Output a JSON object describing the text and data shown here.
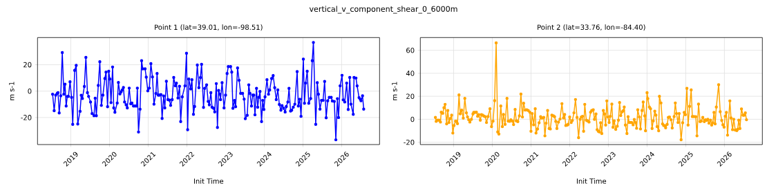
{
  "chart_data": [
    {
      "type": "line",
      "title": "Point 1 (lat=39.01, lon=-98.51)",
      "xlabel": "Init Time",
      "ylabel": "m s-1",
      "annotations": [
        "vertical_v_component_shear_0_6000m"
      ],
      "color": "#0000ff",
      "marker": "circle",
      "grid": true,
      "xlim": [
        2018.14,
        2026.98
      ],
      "ylim": [
        -40.5,
        40.6
      ],
      "xticks": [
        2019,
        2020,
        2021,
        2022,
        2023,
        2024,
        2025,
        2026
      ],
      "yticks": [
        -20,
        0,
        20
      ],
      "x": [
        2018.53,
        2018.57,
        2018.61,
        2018.65,
        2018.67,
        2018.7,
        2018.74,
        2018.78,
        2018.82,
        2018.85,
        2018.88,
        2018.91,
        2018.94,
        2018.98,
        2019.02,
        2019.05,
        2019.1,
        2019.14,
        2019.18,
        2019.24,
        2019.27,
        2019.3,
        2019.35,
        2019.39,
        2019.43,
        2019.46,
        2019.51,
        2019.55,
        2019.6,
        2019.63,
        2019.66,
        2019.71,
        2019.75,
        2019.79,
        2019.83,
        2019.88,
        2019.91,
        2019.95,
        2019.98,
        2020.01,
        2020.04,
        2020.08,
        2020.11,
        2020.14,
        2020.2,
        2020.23,
        2020.27,
        2020.3,
        2020.33,
        2020.36,
        2020.39,
        2020.43,
        2020.46,
        2020.51,
        2020.55,
        2020.58,
        2020.62,
        2020.66,
        2020.7,
        2020.72,
        2020.75,
        2020.79,
        2020.83,
        2020.86,
        2020.92,
        2020.95,
        2020.99,
        2021.03,
        2021.07,
        2021.11,
        2021.15,
        2021.2,
        2021.23,
        2021.26,
        2021.29,
        2021.33,
        2021.36,
        2021.4,
        2021.43,
        2021.47,
        2021.51,
        2021.55,
        2021.58,
        2021.62,
        2021.66,
        2021.7,
        2021.73,
        2021.77,
        2021.81,
        2021.84,
        2021.88,
        2021.95,
        2021.99,
        2022.02,
        2022.05,
        2022.1,
        2022.13,
        2022.17,
        2022.2,
        2022.27,
        2022.31,
        2022.35,
        2022.38,
        2022.43,
        2022.46,
        2022.51,
        2022.55,
        2022.58,
        2022.62,
        2022.65,
        2022.69,
        2022.72,
        2022.76,
        2022.79,
        2022.82,
        2022.85,
        2022.87,
        2022.91,
        2022.96,
        2023.0,
        2023.04,
        2023.07,
        2023.13,
        2023.16,
        2023.19,
        2023.23,
        2023.26,
        2023.31,
        2023.35,
        2023.39,
        2023.44,
        2023.48,
        2023.51,
        2023.56,
        2023.6,
        2023.63,
        2023.67,
        2023.7,
        2023.73,
        2023.76,
        2023.8,
        2023.83,
        2023.86,
        2023.89,
        2023.93,
        2023.96,
        2023.99,
        2024.02,
        2024.07,
        2024.11,
        2024.14,
        2024.19,
        2024.23,
        2024.27,
        2024.31,
        2024.35,
        2024.39,
        2024.43,
        2024.46,
        2024.5,
        2024.54,
        2024.57,
        2024.61,
        2024.64,
        2024.68,
        2024.71,
        2024.75,
        2024.79,
        2024.85,
        2024.88,
        2024.92,
        2024.95,
        2025.01,
        2025.04,
        2025.07,
        2025.11,
        2025.15,
        2025.2,
        2025.24,
        2025.27,
        2025.33,
        2025.37,
        2025.4,
        2025.44,
        2025.48,
        2025.52,
        2025.56,
        2025.6,
        2025.64,
        2025.68,
        2025.73,
        2025.76,
        2025.81,
        2025.85,
        2025.89,
        2025.92,
        2025.96,
        2026.01,
        2026.04,
        2026.08,
        2026.13,
        2026.17,
        2026.21,
        2026.24,
        2026.3,
        2026.32,
        2026.37,
        2026.4,
        2026.45,
        2026.48,
        2026.5,
        2026.54,
        2026.57
      ],
      "values": [
        -2.3,
        -14.8,
        -3.0,
        -1.7,
        -1.2,
        -16.5,
        -3.5,
        29.2,
        -2.3,
        5.2,
        -11.3,
        -4.0,
        -4.0,
        7.1,
        -4.7,
        -25.2,
        15.7,
        19.5,
        -24.9,
        -15.3,
        -3.1,
        -5.6,
        3.5,
        25.6,
        -1.2,
        -4.0,
        -8.2,
        -17.0,
        -18.6,
        -5.4,
        -18.6,
        4.3,
        22.3,
        -10.8,
        -3.0,
        9.6,
        14.4,
        -11.8,
        15.1,
        9.2,
        -8.7,
        18.3,
        -12.7,
        -16.0,
        -9.0,
        6.6,
        -2.1,
        -0.5,
        0.9,
        2.8,
        -8.2,
        -10.4,
        -12.7,
        2.3,
        -9.6,
        -9.0,
        -11.3,
        -11.3,
        -11.3,
        2.3,
        -31.0,
        -13.7,
        23.1,
        16.9,
        16.9,
        10.6,
        0.2,
        2.3,
        20.9,
        10.8,
        -9.9,
        -1.7,
        13.4,
        -3.0,
        -3.0,
        -2.6,
        -20.7,
        -3.7,
        -12.7,
        7.5,
        -6.4,
        -6.8,
        -10.8,
        -6.4,
        10.4,
        4.0,
        6.1,
        -5.2,
        3.7,
        -23.1,
        -4.3,
        4.0,
        28.7,
        -29.2,
        9.2,
        1.7,
        8.7,
        -17.6,
        -11.7,
        19.8,
        2.6,
        10.3,
        20.3,
        -12.3,
        2.1,
        4.7,
        -7.8,
        -10.4,
        -1.2,
        -12.2,
        -13.0,
        -15.7,
        5.7,
        -27.5,
        0.5,
        -2.3,
        -6.4,
        6.4,
        -12.7,
        -3.0,
        13.4,
        18.6,
        18.6,
        14.4,
        -13.0,
        -7.0,
        -11.8,
        17.6,
        8.2,
        -1.7,
        -1.7,
        -6.1,
        -20.9,
        -18.3,
        4.7,
        -1.7,
        -11.3,
        -3.0,
        -3.0,
        -17.9,
        2.1,
        -12.2,
        -4.7,
        -0.3,
        -23.1,
        -7.0,
        -13.9,
        -4.3,
        8.7,
        -2.3,
        0.9,
        9.6,
        11.8,
        2.6,
        -6.4,
        0.9,
        -10.1,
        -14.4,
        -11.0,
        -13.0,
        -15.8,
        -11.7,
        -8.2,
        2.1,
        -15.1,
        -14.4,
        -12.2,
        -9.9,
        14.8,
        -11.3,
        -6.1,
        -19.1,
        24.3,
        -9.2,
        6.1,
        15.1,
        -9.2,
        -5.6,
        23.1,
        36.9,
        -25.2,
        6.4,
        -2.3,
        -13.6,
        -7.0,
        -7.0,
        7.3,
        -20.2,
        -7.3,
        -4.7,
        -4.7,
        -7.5,
        -7.8,
        -36.9,
        -5.7,
        -20.0,
        4.0,
        12.0,
        -6.6,
        -8.2,
        6.1,
        -13.9,
        10.4,
        -9.9,
        -17.6,
        10.4,
        9.9,
        4.0,
        -4.9,
        -6.1,
        -7.3,
        -3.5,
        -13.6
      ]
    },
    {
      "type": "line",
      "title": "Point 2 (lat=33.76, lon=-84.40)",
      "xlabel": "Init Time",
      "ylabel": "m s-1",
      "color": "#ffa500",
      "marker": "circle",
      "grid": true,
      "xlim": [
        2018.14,
        2026.98
      ],
      "ylim": [
        -22,
        71.1
      ],
      "xticks": [
        2019,
        2020,
        2021,
        2022,
        2023,
        2024,
        2025,
        2026
      ],
      "yticks": [
        -20,
        0,
        20,
        40,
        60
      ],
      "x": [
        2018.53,
        2018.55,
        2018.58,
        2018.62,
        2018.66,
        2018.68,
        2018.72,
        2018.75,
        2018.78,
        2018.82,
        2018.85,
        2018.88,
        2018.91,
        2018.95,
        2018.98,
        2019.01,
        2019.05,
        2019.07,
        2019.1,
        2019.14,
        2019.17,
        2019.21,
        2019.25,
        2019.29,
        2019.33,
        2019.36,
        2019.39,
        2019.42,
        2019.46,
        2019.5,
        2019.52,
        2019.55,
        2019.59,
        2019.62,
        2019.65,
        2019.69,
        2019.72,
        2019.75,
        2019.78,
        2019.82,
        2019.85,
        2019.89,
        2019.94,
        2019.98,
        2020.02,
        2020.06,
        2020.1,
        2020.14,
        2020.17,
        2020.22,
        2020.26,
        2020.29,
        2020.33,
        2020.38,
        2020.41,
        2020.45,
        2020.48,
        2020.52,
        2020.55,
        2020.59,
        2020.62,
        2020.66,
        2020.7,
        2020.74,
        2020.78,
        2020.81,
        2020.85,
        2020.89,
        2020.93,
        2020.97,
        2021.0,
        2021.03,
        2021.07,
        2021.11,
        2021.13,
        2021.17,
        2021.21,
        2021.25,
        2021.28,
        2021.33,
        2021.36,
        2021.39,
        2021.43,
        2021.47,
        2021.5,
        2021.54,
        2021.58,
        2021.61,
        2021.64,
        2021.67,
        2021.71,
        2021.75,
        2021.8,
        2021.84,
        2021.87,
        2021.9,
        2021.94,
        2021.96,
        2022.0,
        2022.04,
        2022.07,
        2022.11,
        2022.15,
        2022.19,
        2022.23,
        2022.27,
        2022.3,
        2022.33,
        2022.36,
        2022.39,
        2022.43,
        2022.46,
        2022.5,
        2022.54,
        2022.57,
        2022.61,
        2022.64,
        2022.68,
        2022.71,
        2022.74,
        2022.77,
        2022.8,
        2022.83,
        2022.87,
        2022.9,
        2022.93,
        2022.96,
        2022.99,
        2023.02,
        2023.05,
        2023.09,
        2023.12,
        2023.15,
        2023.19,
        2023.23,
        2023.26,
        2023.29,
        2023.32,
        2023.36,
        2023.39,
        2023.41,
        2023.44,
        2023.48,
        2023.51,
        2023.54,
        2023.57,
        2023.6,
        2023.64,
        2023.67,
        2023.7,
        2023.73,
        2023.76,
        2023.8,
        2023.83,
        2023.87,
        2023.9,
        2023.94,
        2023.96,
        2024.0,
        2024.02,
        2024.06,
        2024.09,
        2024.13,
        2024.16,
        2024.2,
        2024.23,
        2024.26,
        2024.3,
        2024.32,
        2024.36,
        2024.4,
        2024.43,
        2024.46,
        2024.48,
        2024.52,
        2024.55,
        2024.58,
        2024.62,
        2024.65,
        2024.7,
        2024.73,
        2024.76,
        2024.8,
        2024.83,
        2024.88,
        2024.92,
        2024.96,
        2024.99,
        2025.03,
        2025.06,
        2025.1,
        2025.14,
        2025.17,
        2025.21,
        2025.26,
        2025.29,
        2025.33,
        2025.37,
        2025.4,
        2025.44,
        2025.48,
        2025.51,
        2025.54,
        2025.57,
        2025.6,
        2025.64,
        2025.67,
        2025.7,
        2025.73,
        2025.76,
        2025.79,
        2025.85,
        2025.89,
        2025.93,
        2025.96,
        2025.99,
        2026.02,
        2026.05,
        2026.08,
        2026.14,
        2026.17,
        2026.21,
        2026.24,
        2026.28,
        2026.32,
        2026.34,
        2026.37,
        2026.4,
        2026.44,
        2026.48,
        2026.51,
        2026.54,
        2026.57
      ],
      "values": [
        1.6,
        -1.8,
        -0.8,
        -0.8,
        -2.4,
        6.2,
        5.2,
        10.0,
        13.0,
        -4.0,
        7.6,
        -2.8,
        0.6,
        3.6,
        -12.0,
        -5.4,
        -1.6,
        -1.8,
        -3.8,
        21.2,
        4.8,
        8.0,
        1.0,
        18.2,
        5.6,
        2.0,
        -0.4,
        -2.4,
        0,
        4.6,
        6.0,
        6.0,
        6.2,
        2.6,
        4.0,
        -0.8,
        4.0,
        3.6,
        2.8,
        2.2,
        -2.8,
        2.4,
        9.2,
        -6.4,
        -1.6,
        16.2,
        66.5,
        -11.0,
        -12.8,
        11.6,
        -6.4,
        4.2,
        -4.4,
        18.2,
        -1.6,
        -1.8,
        -0.4,
        -1.6,
        -4.6,
        8.6,
        -1.4,
        -2.0,
        3.0,
        22.0,
        2.0,
        14.0,
        8.0,
        8.2,
        7.6,
        6.2,
        -10.4,
        5.0,
        -4.8,
        9.2,
        -12.0,
        -8.4,
        -3.0,
        2.2,
        1.0,
        1.6,
        -14.4,
        -3.4,
        7.6,
        -8.0,
        -8.4,
        3.6,
        3.0,
        2.2,
        -1.8,
        -8.0,
        -2.4,
        0.2,
        13.6,
        1.2,
        4.2,
        -5.4,
        -5.0,
        -4.4,
        2.0,
        -2.8,
        -1.0,
        5.6,
        17.2,
        1.6,
        -16.0,
        0,
        2.0,
        2.6,
        -10.4,
        13.0,
        -0.8,
        -1.4,
        -2.4,
        6.2,
        7.6,
        8.2,
        0,
        4.6,
        -9.0,
        -10.4,
        -11.0,
        -3.0,
        -12.4,
        7.6,
        4.6,
        -5.0,
        16.0,
        2.0,
        -2.8,
        2.6,
        13.2,
        -7.0,
        -1.4,
        -8.8,
        -6.0,
        -0.8,
        14.6,
        3.2,
        6.6,
        7.6,
        10.6,
        -5.0,
        -12.4,
        2.2,
        -2.8,
        -2.8,
        -2.8,
        -4.8,
        -0.2,
        -2.8,
        -7.8,
        8.2,
        2.0,
        -8.4,
        7.6,
        15.0,
        3.0,
        -10.0,
        23.2,
        18.0,
        10.6,
        9.2,
        -8.0,
        -1.4,
        7.0,
        3.6,
        -6.4,
        -10.0,
        20.0,
        14.2,
        -4.0,
        -5.4,
        -5.6,
        -7.4,
        -4.4,
        1.6,
        2.0,
        -0.4,
        -7.6,
        2.4,
        14.2,
        5.0,
        -2.8,
        5.0,
        -17.8,
        -3.0,
        6.0,
        4.0,
        26.9,
        -5.0,
        11.2,
        25.5,
        2.4,
        2.4,
        2.2,
        -14.4,
        13.2,
        -2.0,
        -1.6,
        1.6,
        -2.0,
        -0.4,
        -1.0,
        0,
        -3.4,
        -0.8,
        -5.0,
        -3.0,
        6.0,
        -4.0,
        10.6,
        30.1,
        6.6,
        -1.0,
        -4.8,
        -6.8,
        2.6,
        6.0,
        -13.8,
        16.0,
        1.2,
        -9.0,
        0,
        -9.4,
        -9.8,
        -8.8,
        -0.8,
        -8.0,
        9.0,
        3.6,
        3.6,
        5.6,
        -0.4
      ]
    }
  ]
}
